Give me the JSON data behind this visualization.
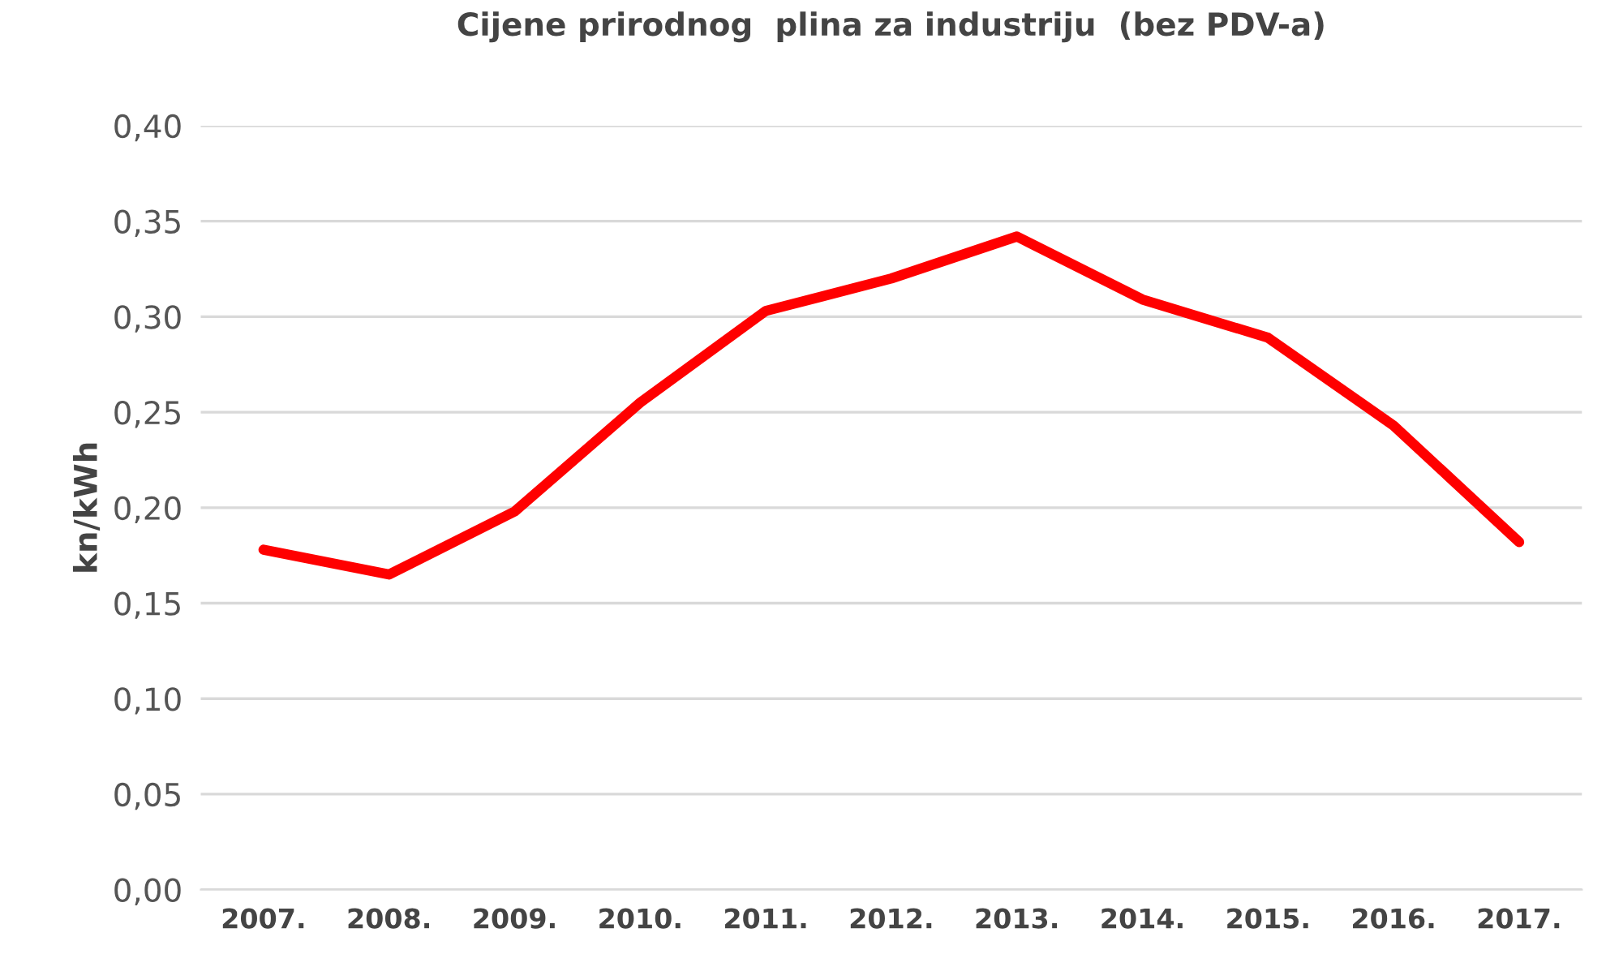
{
  "chart_data": {
    "type": "line",
    "title": "Cijene prirodnog  plina za industriju  (bez PDV-a)",
    "ylabel": "kn/kWh",
    "categories": [
      "2007.",
      "2008.",
      "2009.",
      "2010.",
      "2011.",
      "2012.",
      "2013.",
      "2014.",
      "2015.",
      "2016.",
      "2017."
    ],
    "series": [
      {
        "color": "#ff0000",
        "values": [
          0.178,
          0.165,
          0.198,
          0.255,
          0.303,
          0.32,
          0.342,
          0.309,
          0.289,
          0.243,
          0.182
        ]
      }
    ],
    "ylim": [
      0,
      0.4
    ],
    "yticks": [
      {
        "value": 0,
        "label": "0,00"
      },
      {
        "value": 0.05,
        "label": "0,05"
      },
      {
        "value": 0.1,
        "label": "0,10"
      },
      {
        "value": 0.15,
        "label": "0,15"
      },
      {
        "value": 0.2,
        "label": "0,20"
      },
      {
        "value": 0.25,
        "label": "0,25"
      },
      {
        "value": 0.3,
        "label": "0,30"
      },
      {
        "value": 0.35,
        "label": "0,35"
      },
      {
        "value": 0.4,
        "label": "0,40"
      }
    ],
    "grid": "y",
    "legend": false,
    "marker": "none",
    "line_style": "solid"
  }
}
